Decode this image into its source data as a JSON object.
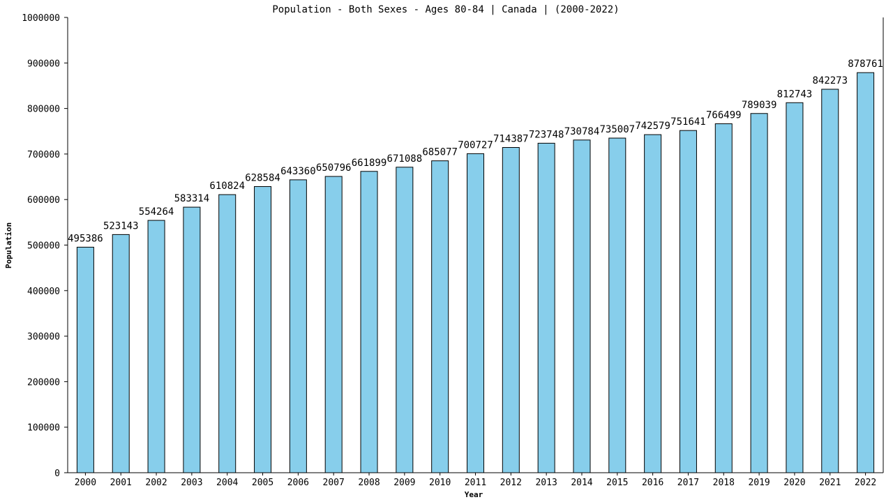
{
  "chart_data": {
    "type": "bar",
    "title": "Population - Both Sexes - Ages 80-84 | Canada |  (2000-2022)",
    "xlabel": "Year",
    "ylabel": "Population",
    "ylim": [
      0,
      1000000
    ],
    "yticks": [
      0,
      100000,
      200000,
      300000,
      400000,
      500000,
      600000,
      700000,
      800000,
      900000,
      1000000
    ],
    "categories": [
      "2000",
      "2001",
      "2002",
      "2003",
      "2004",
      "2005",
      "2006",
      "2007",
      "2008",
      "2009",
      "2010",
      "2011",
      "2012",
      "2013",
      "2014",
      "2015",
      "2016",
      "2017",
      "2018",
      "2019",
      "2020",
      "2021",
      "2022"
    ],
    "values": [
      495386,
      523143,
      554264,
      583314,
      610824,
      628584,
      643360,
      650796,
      661899,
      671088,
      685077,
      700727,
      714387,
      723748,
      730784,
      735007,
      742579,
      751641,
      766499,
      789039,
      812743,
      842273,
      878761
    ],
    "bar_color": "#87ceeb",
    "grid": false,
    "legend": "none"
  }
}
